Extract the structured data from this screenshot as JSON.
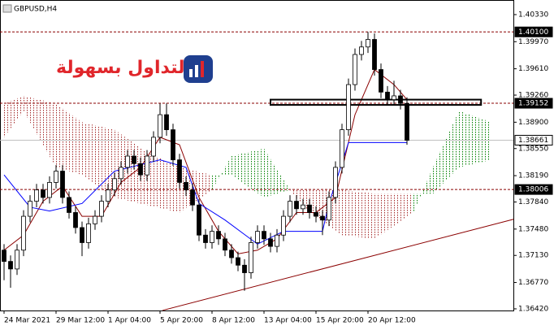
{
  "chart_data": {
    "type": "candlestick",
    "title": "GBPUSD,H4",
    "logo_text": "التداول بسهولة",
    "x": [
      0,
      1,
      2,
      3,
      4,
      5,
      6,
      7,
      8,
      9,
      10,
      11,
      12,
      13,
      14,
      15,
      16,
      17,
      18,
      19,
      20,
      21,
      22,
      23,
      24,
      25,
      26,
      27,
      28,
      29,
      30,
      31,
      32,
      33,
      34,
      35,
      36,
      37,
      38,
      39,
      40,
      41,
      42,
      43,
      44,
      45,
      46,
      47,
      48,
      49,
      50,
      51,
      52,
      53,
      54,
      55,
      56,
      57,
      58,
      59,
      60,
      61,
      62
    ],
    "open": [
      1.372,
      1.3705,
      1.3695,
      1.372,
      1.3765,
      1.3785,
      1.38,
      1.379,
      1.381,
      1.3825,
      1.379,
      1.377,
      1.375,
      1.373,
      1.3755,
      1.3765,
      1.3785,
      1.38,
      1.3815,
      1.383,
      1.3845,
      1.3835,
      1.382,
      1.3845,
      1.387,
      1.39,
      1.388,
      1.384,
      1.381,
      1.38,
      1.378,
      1.374,
      1.373,
      1.3745,
      1.3735,
      1.372,
      1.371,
      1.37,
      1.369,
      1.373,
      1.3745,
      1.3735,
      1.3725,
      1.374,
      1.3765,
      1.3785,
      1.3775,
      1.378,
      1.377,
      1.3765,
      1.376,
      1.379,
      1.383,
      1.388,
      1.394,
      1.398,
      1.399,
      1.4,
      1.396,
      1.393,
      1.392,
      1.3925,
      1.3915
    ],
    "high": [
      1.3728,
      1.3713,
      1.3728,
      1.3773,
      1.3793,
      1.3808,
      1.3808,
      1.3818,
      1.3833,
      1.3833,
      1.3798,
      1.3778,
      1.3758,
      1.3763,
      1.3773,
      1.3793,
      1.3808,
      1.3823,
      1.3838,
      1.3853,
      1.3853,
      1.3843,
      1.3853,
      1.3878,
      1.3915,
      1.3915,
      1.3888,
      1.3848,
      1.3818,
      1.3808,
      1.3788,
      1.3748,
      1.3753,
      1.3753,
      1.3743,
      1.3728,
      1.3718,
      1.3708,
      1.3738,
      1.3753,
      1.3753,
      1.3743,
      1.3748,
      1.3773,
      1.3793,
      1.3793,
      1.3788,
      1.3788,
      1.3778,
      1.3773,
      1.3798,
      1.3838,
      1.3888,
      1.3948,
      1.3988,
      1.3998,
      1.401,
      1.4008,
      1.3968,
      1.3938,
      1.3945,
      1.3933,
      1.3923
    ],
    "low": [
      1.368,
      1.367,
      1.3687,
      1.3712,
      1.3757,
      1.3777,
      1.3782,
      1.3782,
      1.3802,
      1.3782,
      1.3762,
      1.3742,
      1.3712,
      1.3722,
      1.3747,
      1.3757,
      1.3777,
      1.3792,
      1.3807,
      1.3822,
      1.3827,
      1.3812,
      1.3812,
      1.3837,
      1.3862,
      1.3872,
      1.3832,
      1.3802,
      1.3792,
      1.3772,
      1.3732,
      1.3722,
      1.3722,
      1.3727,
      1.3712,
      1.3702,
      1.3692,
      1.3666,
      1.3682,
      1.3722,
      1.3727,
      1.3717,
      1.3717,
      1.3732,
      1.3757,
      1.3767,
      1.3767,
      1.3762,
      1.3757,
      1.374,
      1.3752,
      1.3782,
      1.3822,
      1.3872,
      1.3932,
      1.3972,
      1.3982,
      1.3952,
      1.3922,
      1.3912,
      1.3912,
      1.3907,
      1.386
    ],
    "close": [
      1.3705,
      1.3695,
      1.372,
      1.3765,
      1.3785,
      1.38,
      1.379,
      1.381,
      1.3825,
      1.379,
      1.377,
      1.375,
      1.373,
      1.3755,
      1.3765,
      1.3785,
      1.38,
      1.3815,
      1.383,
      1.3845,
      1.3835,
      1.382,
      1.3845,
      1.387,
      1.39,
      1.388,
      1.384,
      1.381,
      1.38,
      1.378,
      1.374,
      1.373,
      1.3745,
      1.3735,
      1.372,
      1.371,
      1.37,
      1.369,
      1.373,
      1.3745,
      1.3735,
      1.3725,
      1.374,
      1.3765,
      1.3785,
      1.3775,
      1.378,
      1.377,
      1.3765,
      1.376,
      1.379,
      1.383,
      1.388,
      1.394,
      1.398,
      1.399,
      1.4,
      1.396,
      1.393,
      1.392,
      1.3925,
      1.3915,
      1.3866
    ],
    "candle_color": "#000000",
    "series": [
      {
        "color": "#8b0000",
        "x": [
          0,
          3,
          6,
          9,
          12,
          15,
          18,
          21,
          24,
          27,
          30,
          33,
          36,
          39,
          42,
          45,
          48,
          51,
          54,
          57,
          60,
          62
        ],
        "values": [
          1.372,
          1.374,
          1.3785,
          1.3805,
          1.3765,
          1.3765,
          1.381,
          1.383,
          1.387,
          1.386,
          1.379,
          1.3745,
          1.3715,
          1.372,
          1.3735,
          1.377,
          1.377,
          1.379,
          1.39,
          1.396,
          1.394,
          1.392
        ]
      },
      {
        "color": "#0000ff",
        "x": [
          0,
          4,
          7,
          12,
          17,
          24,
          28,
          30,
          34,
          39,
          43,
          49,
          50,
          53,
          62
        ],
        "values": [
          1.382,
          1.3777,
          1.3772,
          1.3782,
          1.3825,
          1.384,
          1.383,
          1.3782,
          1.376,
          1.3728,
          1.3745,
          1.3745,
          1.3782,
          1.3863,
          1.3863
        ]
      }
    ],
    "cloud": {
      "x": [
        0,
        3,
        8,
        12,
        17,
        22,
        27,
        32,
        35,
        40,
        44,
        47,
        52,
        57,
        63,
        66,
        70,
        75
      ],
      "span_a": [
        1.387,
        1.3905,
        1.383,
        1.382,
        1.379,
        1.378,
        1.377,
        1.38,
        1.3845,
        1.3855,
        1.38,
        1.377,
        1.374,
        1.3735,
        1.377,
        1.383,
        1.3905,
        1.389
      ],
      "span_b": [
        1.3915,
        1.3925,
        1.3915,
        1.389,
        1.388,
        1.385,
        1.383,
        1.382,
        1.382,
        1.379,
        1.38,
        1.38,
        1.38,
        1.3795,
        1.3795,
        1.3795,
        1.383,
        1.384
      ],
      "up_color": "#008000",
      "down_color": "#a52a2a"
    },
    "trendline": {
      "color": "#8b0000",
      "x": [
        24.4,
        78.4
      ],
      "values": [
        1.364,
        1.3761
      ]
    },
    "rectangle": {
      "x": [
        41,
        73.4
      ],
      "values": [
        1.392,
        1.3913
      ]
    },
    "levels": [
      {
        "value": 1.401,
        "label": "1.40100",
        "color": "#8b0000"
      },
      {
        "value": 1.39152,
        "label": "1.39152",
        "color": "#8b0000"
      },
      {
        "value": 1.38661,
        "label": "1.38661",
        "color": "#c0c0c0"
      },
      {
        "value": 1.38006,
        "label": "1.38006",
        "color": "#8b0000"
      }
    ],
    "xlim": [
      -0.625,
      78.375
    ],
    "ylim": [
      1.36398,
      1.40524
    ],
    "xticks": [
      {
        "value": 0,
        "label": "24 Mar 2021"
      },
      {
        "value": 8,
        "label": "29 Mar 12:00"
      },
      {
        "value": 16,
        "label": "1 Apr 04:00"
      },
      {
        "value": 24,
        "label": "5 Apr 20:00"
      },
      {
        "value": 32,
        "label": "8 Apr 12:00"
      },
      {
        "value": 40,
        "label": "13 Apr 04:00"
      },
      {
        "value": 48,
        "label": "15 Apr 20:00"
      },
      {
        "value": 56,
        "label": "20 Apr 12:00"
      }
    ],
    "yticks": [
      {
        "value": 1.4033,
        "label": "1.40330"
      },
      {
        "value": 1.3997,
        "label": "1.39970"
      },
      {
        "value": 1.3961,
        "label": "1.39610"
      },
      {
        "value": 1.3926,
        "label": "1.39260"
      },
      {
        "value": 1.389,
        "label": "1.38900"
      },
      {
        "value": 1.3855,
        "label": "1.38550"
      },
      {
        "value": 1.3819,
        "label": "1.38190"
      },
      {
        "value": 1.3784,
        "label": "1.37840"
      },
      {
        "value": 1.3748,
        "label": "1.37480"
      },
      {
        "value": 1.3713,
        "label": "1.37130"
      },
      {
        "value": 1.3677,
        "label": "1.36770"
      },
      {
        "value": 1.3642,
        "label": "1.36420"
      }
    ]
  }
}
